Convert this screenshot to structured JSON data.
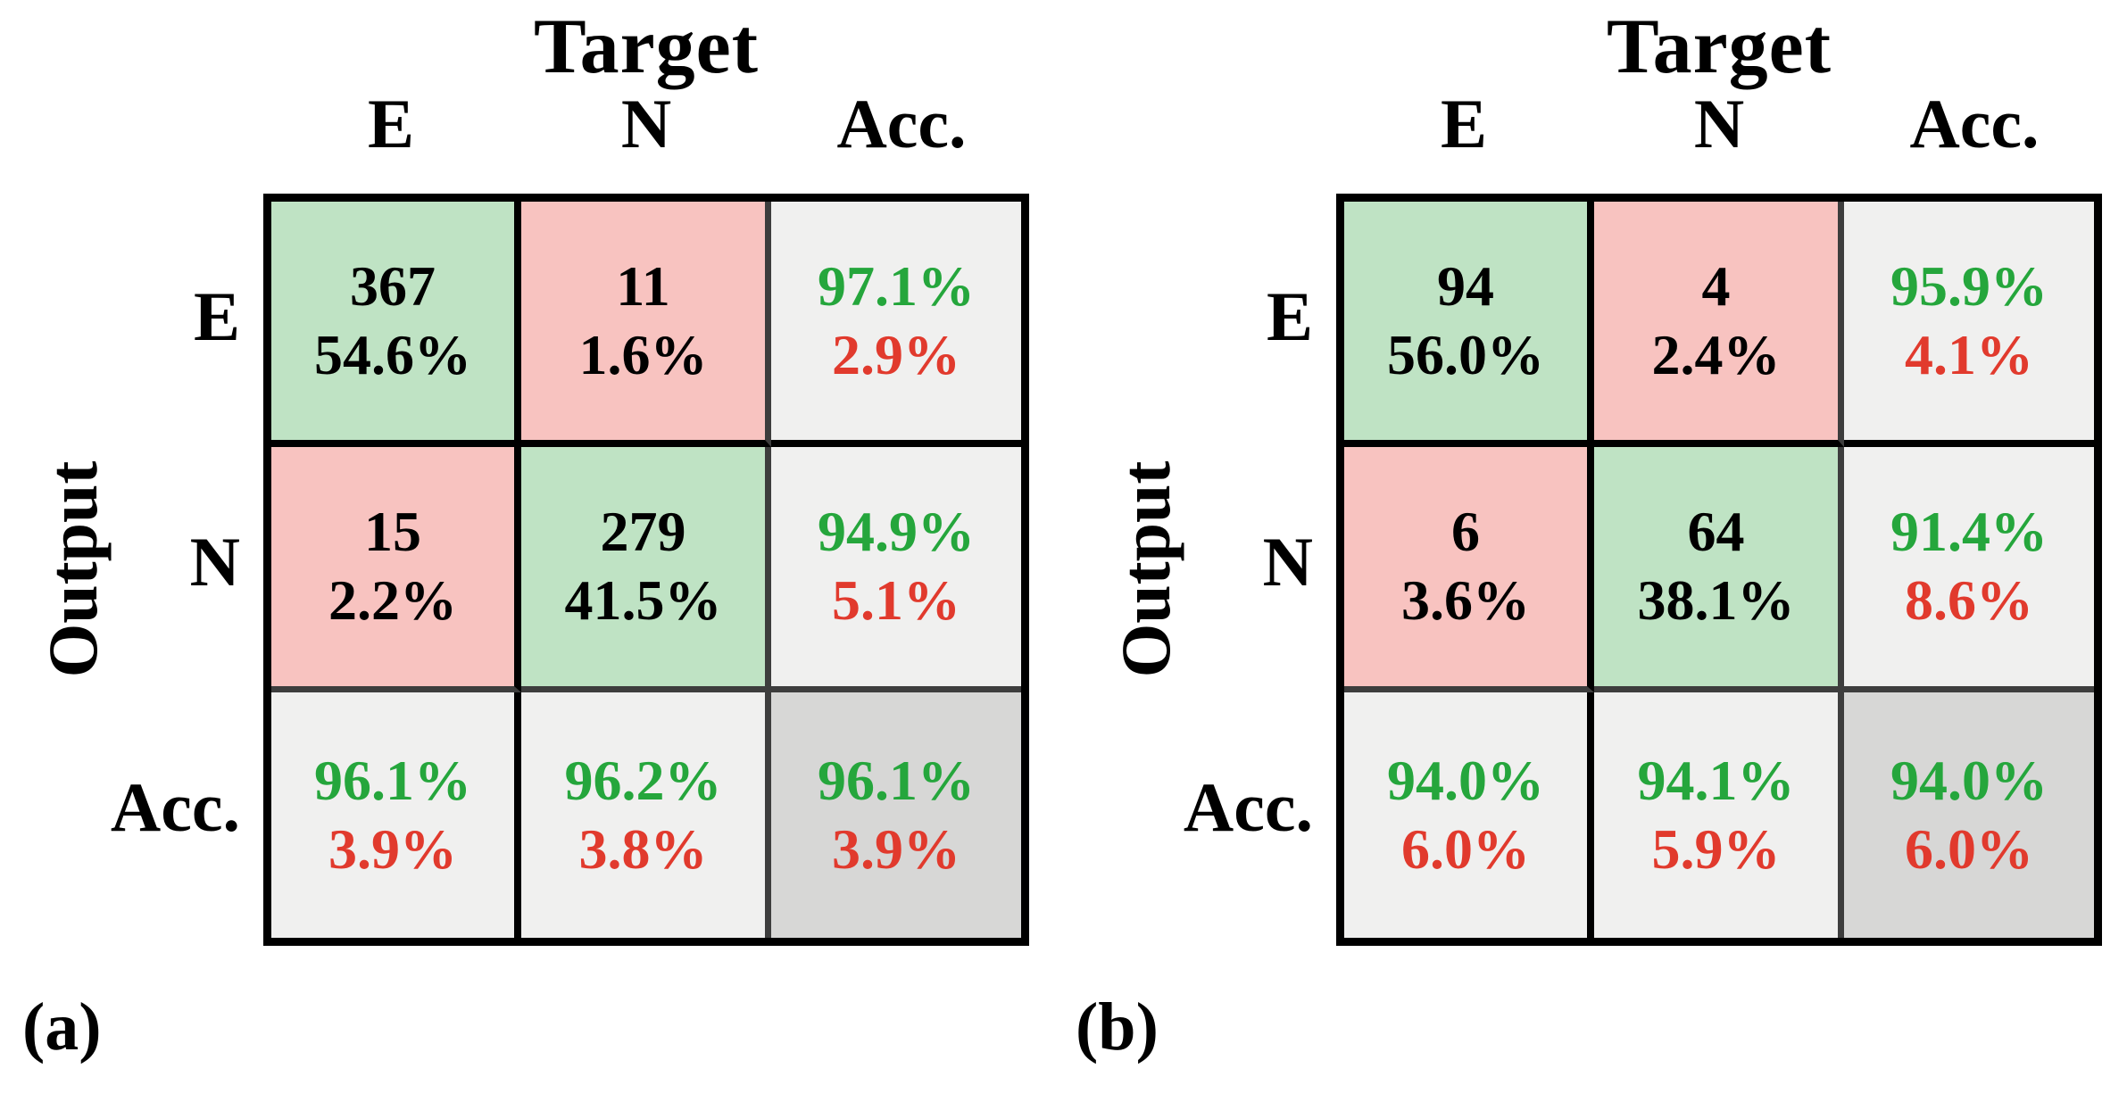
{
  "figure": {
    "panels": [
      {
        "caption": "(a)",
        "title": "Target",
        "output_label": "Output",
        "col_headers": [
          "E",
          "N",
          "Acc."
        ],
        "row_headers": [
          "E",
          "N",
          "Acc."
        ],
        "cells": [
          [
            {
              "line1": "367",
              "line2": "54.6%",
              "bg": "green",
              "style": "count"
            },
            {
              "line1": "11",
              "line2": "1.6%",
              "bg": "pink",
              "style": "count"
            },
            {
              "line1": "97.1%",
              "line2": "2.9%",
              "bg": "light",
              "style": "acc"
            }
          ],
          [
            {
              "line1": "15",
              "line2": "2.2%",
              "bg": "pink",
              "style": "count"
            },
            {
              "line1": "279",
              "line2": "41.5%",
              "bg": "green",
              "style": "count"
            },
            {
              "line1": "94.9%",
              "line2": "5.1%",
              "bg": "light",
              "style": "acc"
            }
          ],
          [
            {
              "line1": "96.1%",
              "line2": "3.9%",
              "bg": "light",
              "style": "acc"
            },
            {
              "line1": "96.2%",
              "line2": "3.8%",
              "bg": "light",
              "style": "acc"
            },
            {
              "line1": "96.1%",
              "line2": "3.9%",
              "bg": "dark",
              "style": "acc"
            }
          ]
        ]
      },
      {
        "caption": "(b)",
        "title": "Target",
        "output_label": "Output",
        "col_headers": [
          "E",
          "N",
          "Acc."
        ],
        "row_headers": [
          "E",
          "N",
          "Acc."
        ],
        "cells": [
          [
            {
              "line1": "94",
              "line2": "56.0%",
              "bg": "green",
              "style": "count"
            },
            {
              "line1": "4",
              "line2": "2.4%",
              "bg": "pink",
              "style": "count"
            },
            {
              "line1": "95.9%",
              "line2": "4.1%",
              "bg": "light",
              "style": "acc"
            }
          ],
          [
            {
              "line1": "6",
              "line2": "3.6%",
              "bg": "pink",
              "style": "count"
            },
            {
              "line1": "64",
              "line2": "38.1%",
              "bg": "green",
              "style": "count"
            },
            {
              "line1": "91.4%",
              "line2": "8.6%",
              "bg": "light",
              "style": "acc"
            }
          ],
          [
            {
              "line1": "94.0%",
              "line2": "6.0%",
              "bg": "light",
              "style": "acc"
            },
            {
              "line1": "94.1%",
              "line2": "5.9%",
              "bg": "light",
              "style": "acc"
            },
            {
              "line1": "94.0%",
              "line2": "6.0%",
              "bg": "dark",
              "style": "acc"
            }
          ]
        ]
      }
    ]
  },
  "colors": {
    "correct_fill": "#bfe3c4",
    "error_fill": "#f8c3c0",
    "acc_fill": "#f0f0ef",
    "total_fill": "#d7d7d6",
    "acc_text_green": "#25a63c",
    "acc_text_red": "#e13a2d",
    "grid_black": "#000000",
    "grid_gray": "#3d3d3d"
  },
  "chart_data": [
    {
      "type": "heatmap",
      "subtype": "confusion-matrix",
      "panel_label": "(a)",
      "title": "Target",
      "xlabel": "Target",
      "ylabel": "Output",
      "classes": [
        "E",
        "N"
      ],
      "matrix_counts": [
        [
          367,
          11
        ],
        [
          15,
          279
        ]
      ],
      "matrix_percent_of_total": [
        [
          54.6,
          1.6
        ],
        [
          2.2,
          41.5
        ]
      ],
      "row_accuracy_pct": [
        97.1,
        94.9
      ],
      "row_error_pct": [
        2.9,
        5.1
      ],
      "col_accuracy_pct": [
        96.1,
        96.2
      ],
      "col_error_pct": [
        3.9,
        3.8
      ],
      "overall_accuracy_pct": 96.1,
      "overall_error_pct": 3.9,
      "legend_position": "none",
      "grid": true
    },
    {
      "type": "heatmap",
      "subtype": "confusion-matrix",
      "panel_label": "(b)",
      "title": "Target",
      "xlabel": "Target",
      "ylabel": "Output",
      "classes": [
        "E",
        "N"
      ],
      "matrix_counts": [
        [
          94,
          4
        ],
        [
          6,
          64
        ]
      ],
      "matrix_percent_of_total": [
        [
          56.0,
          2.4
        ],
        [
          3.6,
          38.1
        ]
      ],
      "row_accuracy_pct": [
        95.9,
        91.4
      ],
      "row_error_pct": [
        4.1,
        8.6
      ],
      "col_accuracy_pct": [
        94.0,
        94.1
      ],
      "col_error_pct": [
        6.0,
        5.9
      ],
      "overall_accuracy_pct": 94.0,
      "overall_error_pct": 6.0,
      "legend_position": "none",
      "grid": true
    }
  ]
}
